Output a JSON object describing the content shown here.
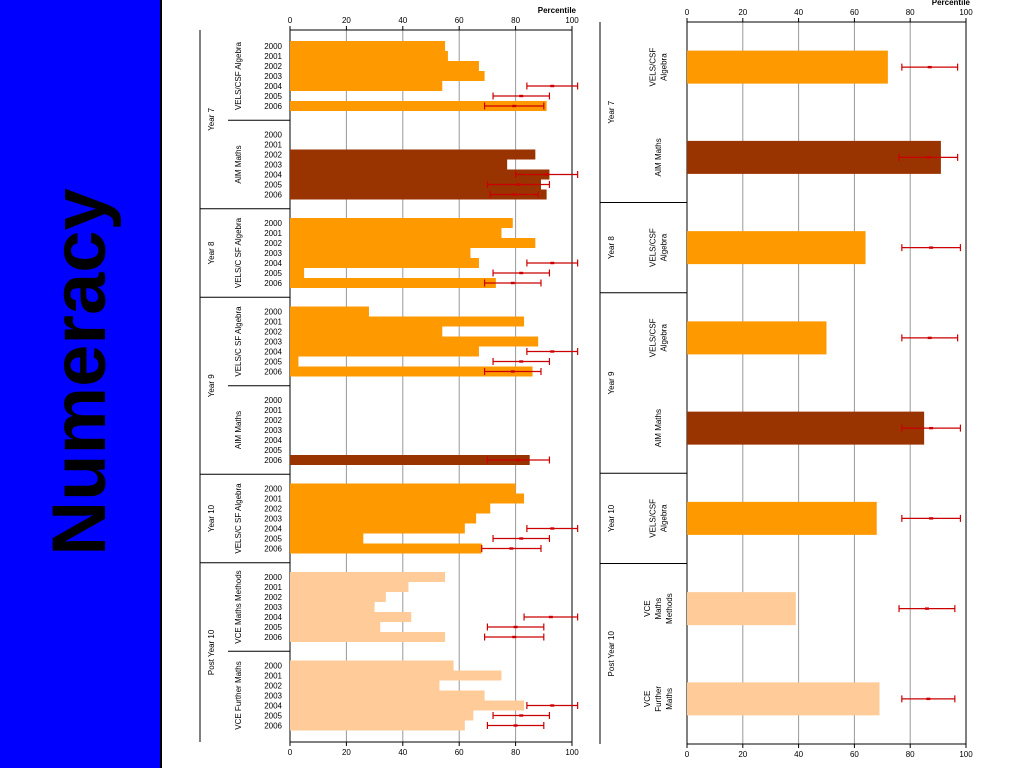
{
  "slide": {
    "title": "Numeracy",
    "sidebar_color": "#0000ff"
  },
  "chart_data": [
    {
      "type": "bar",
      "orientation": "horizontal",
      "xlabel": "Percentile",
      "xlim": [
        0,
        100
      ],
      "xticks": [
        0,
        20,
        40,
        60,
        80,
        100
      ],
      "grid": true,
      "colors": {
        "vels": "#ff9900",
        "aim": "#993300",
        "post": "#ffcc99",
        "error": "#cc0000"
      },
      "groups": [
        {
          "year": "Year 7",
          "subgroups": [
            {
              "name": "VELS/CSF Algebra",
              "color": "vels",
              "bars": [
                {
                  "label": "2000",
                  "value": 55
                },
                {
                  "label": "2001",
                  "value": 56
                },
                {
                  "label": "2002",
                  "value": 67
                },
                {
                  "label": "2003",
                  "value": 69
                },
                {
                  "label": "2004",
                  "value": 54,
                  "error": [
                    84,
                    102
                  ]
                },
                {
                  "label": "2005",
                  "value": null,
                  "error": [
                    72,
                    92
                  ]
                },
                {
                  "label": "2006",
                  "value": 91,
                  "error": [
                    69,
                    90
                  ]
                }
              ]
            },
            {
              "name": "AIM Maths",
              "color": "aim",
              "bars": [
                {
                  "label": "2000",
                  "value": null
                },
                {
                  "label": "2001",
                  "value": null
                },
                {
                  "label": "2002",
                  "value": 87
                },
                {
                  "label": "2003",
                  "value": 77
                },
                {
                  "label": "2004",
                  "value": 92,
                  "error": [
                    80,
                    102
                  ]
                },
                {
                  "label": "2005",
                  "value": 89,
                  "error": [
                    70,
                    92
                  ]
                },
                {
                  "label": "2006",
                  "value": 91,
                  "error": [
                    71,
                    88
                  ]
                }
              ]
            }
          ]
        },
        {
          "year": "Year 8",
          "subgroups": [
            {
              "name": "VELS/C SF Algebra",
              "color": "vels",
              "bars": [
                {
                  "label": "2000",
                  "value": 79
                },
                {
                  "label": "2001",
                  "value": 75
                },
                {
                  "label": "2002",
                  "value": 87
                },
                {
                  "label": "2003",
                  "value": 64
                },
                {
                  "label": "2004",
                  "value": 67,
                  "error": [
                    84,
                    102
                  ]
                },
                {
                  "label": "2005",
                  "value": 5,
                  "error": [
                    72,
                    92
                  ]
                },
                {
                  "label": "2006",
                  "value": 73,
                  "error": [
                    69,
                    89
                  ]
                }
              ]
            }
          ]
        },
        {
          "year": "Year 9",
          "subgroups": [
            {
              "name": "VELS/C SF Algebra",
              "color": "vels",
              "bars": [
                {
                  "label": "2000",
                  "value": 28
                },
                {
                  "label": "2001",
                  "value": 83
                },
                {
                  "label": "2002",
                  "value": 54
                },
                {
                  "label": "2003",
                  "value": 88
                },
                {
                  "label": "2004",
                  "value": 67,
                  "error": [
                    84,
                    102
                  ]
                },
                {
                  "label": "2005",
                  "value": 3,
                  "error": [
                    72,
                    92
                  ]
                },
                {
                  "label": "2006",
                  "value": 86,
                  "error": [
                    69,
                    89
                  ]
                }
              ]
            },
            {
              "name": "AIM Maths",
              "color": "aim",
              "bars": [
                {
                  "label": "2000",
                  "value": null
                },
                {
                  "label": "2001",
                  "value": null
                },
                {
                  "label": "2002",
                  "value": null
                },
                {
                  "label": "2003",
                  "value": null
                },
                {
                  "label": "2004",
                  "value": null
                },
                {
                  "label": "2005",
                  "value": null
                },
                {
                  "label": "2006",
                  "value": 85,
                  "error": [
                    70,
                    92
                  ]
                }
              ]
            }
          ]
        },
        {
          "year": "Year 10",
          "subgroups": [
            {
              "name": "VELS/C SF Algebra",
              "color": "vels",
              "bars": [
                {
                  "label": "2000",
                  "value": 80
                },
                {
                  "label": "2001",
                  "value": 83
                },
                {
                  "label": "2002",
                  "value": 71
                },
                {
                  "label": "2003",
                  "value": 66
                },
                {
                  "label": "2004",
                  "value": 62,
                  "error": [
                    84,
                    102
                  ]
                },
                {
                  "label": "2005",
                  "value": 26,
                  "error": [
                    72,
                    92
                  ]
                },
                {
                  "label": "2006",
                  "value": 68,
                  "error": [
                    68,
                    89
                  ]
                }
              ]
            }
          ]
        },
        {
          "year": "Post Year 10",
          "subgroups": [
            {
              "name": "VCE Maths Methods",
              "color": "post",
              "bars": [
                {
                  "label": "2000",
                  "value": 55
                },
                {
                  "label": "2001",
                  "value": 42
                },
                {
                  "label": "2002",
                  "value": 34
                },
                {
                  "label": "2003",
                  "value": 30
                },
                {
                  "label": "2004",
                  "value": 43,
                  "error": [
                    83,
                    102
                  ]
                },
                {
                  "label": "2005",
                  "value": 32,
                  "error": [
                    70,
                    90
                  ]
                },
                {
                  "label": "2006",
                  "value": 55,
                  "error": [
                    69,
                    90
                  ]
                }
              ]
            },
            {
              "name": "VCE Further Maths",
              "color": "post",
              "bars": [
                {
                  "label": "2000",
                  "value": 58
                },
                {
                  "label": "2001",
                  "value": 75
                },
                {
                  "label": "2002",
                  "value": 53
                },
                {
                  "label": "2003",
                  "value": 69
                },
                {
                  "label": "2004",
                  "value": 83,
                  "error": [
                    84,
                    102
                  ]
                },
                {
                  "label": "2005",
                  "value": 65,
                  "error": [
                    72,
                    92
                  ]
                },
                {
                  "label": "2006",
                  "value": 62,
                  "error": [
                    70,
                    90
                  ]
                }
              ]
            }
          ]
        }
      ]
    },
    {
      "type": "bar",
      "orientation": "horizontal",
      "xlabel": "Percentile",
      "xlim": [
        0,
        100
      ],
      "xticks": [
        0,
        20,
        40,
        60,
        80,
        100
      ],
      "grid": true,
      "colors": {
        "vels": "#ff9900",
        "aim": "#993300",
        "post": "#ffcc99",
        "error": "#cc0000"
      },
      "groups": [
        {
          "year": "Year 7",
          "items": [
            {
              "label_lines": [
                "VELS/CSF",
                "Algebra"
              ],
              "value": 72,
              "color": "vels",
              "error": [
                77,
                97
              ]
            },
            {
              "label_lines": [
                "AIM Maths"
              ],
              "value": 91,
              "color": "aim",
              "error": [
                76,
                97
              ]
            }
          ]
        },
        {
          "year": "Year 8",
          "items": [
            {
              "label_lines": [
                "VELS/CSF",
                "Algebra"
              ],
              "value": 64,
              "color": "vels",
              "error": [
                77,
                98
              ]
            }
          ]
        },
        {
          "year": "Year 9",
          "items": [
            {
              "label_lines": [
                "VELS/CSF",
                "Algebra"
              ],
              "value": 50,
              "color": "vels",
              "error": [
                77,
                97
              ]
            },
            {
              "label_lines": [
                "AIM Maths"
              ],
              "value": 85,
              "color": "aim",
              "error": [
                77,
                98
              ]
            }
          ]
        },
        {
          "year": "Year 10",
          "items": [
            {
              "label_lines": [
                "VELS/CSF",
                "Algebra"
              ],
              "value": 68,
              "color": "vels",
              "error": [
                77,
                98
              ]
            }
          ]
        },
        {
          "year": "Post Year 10",
          "items": [
            {
              "label_lines": [
                "VCE",
                "Maths",
                "Methods"
              ],
              "value": 39,
              "color": "post",
              "error": [
                76,
                96
              ]
            },
            {
              "label_lines": [
                "VCE",
                "Further",
                "Maths"
              ],
              "value": 69,
              "color": "post",
              "error": [
                77,
                96
              ]
            }
          ]
        }
      ]
    }
  ]
}
